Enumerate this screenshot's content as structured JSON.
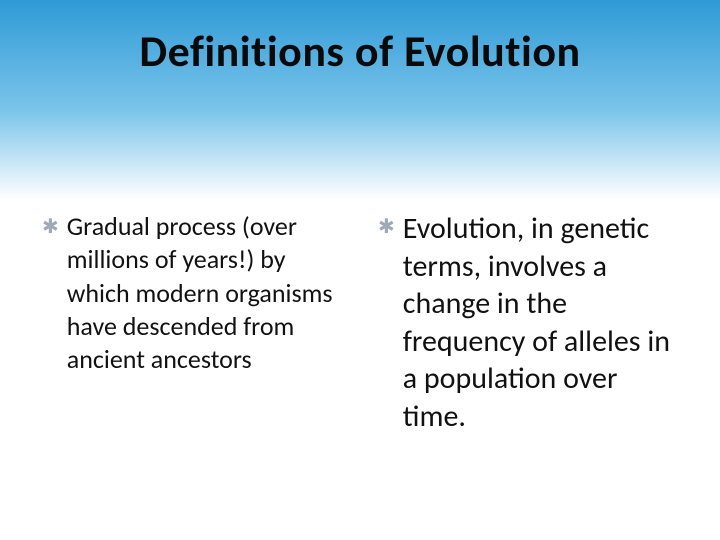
{
  "slide": {
    "title": "Definitions of Evolution",
    "title_fontsize": 44,
    "title_color": "#0a0a0a",
    "background_color": "#ffffff",
    "header_gradient": {
      "top": "#2f9ad6",
      "mid": "#7ac4ea",
      "bottom": "#ffffff"
    },
    "bullet_glyph": "✱",
    "bullet_color": "#9ea9b5",
    "text_color": "#111111",
    "columns": [
      {
        "fontsize": 26,
        "text": "Gradual process (over millions of years!) by which modern organisms have descended from ancient ancestors"
      },
      {
        "fontsize": 30,
        "text": "Evolution, in genetic terms, involves a change in the frequency of alleles in a population over time."
      }
    ]
  }
}
